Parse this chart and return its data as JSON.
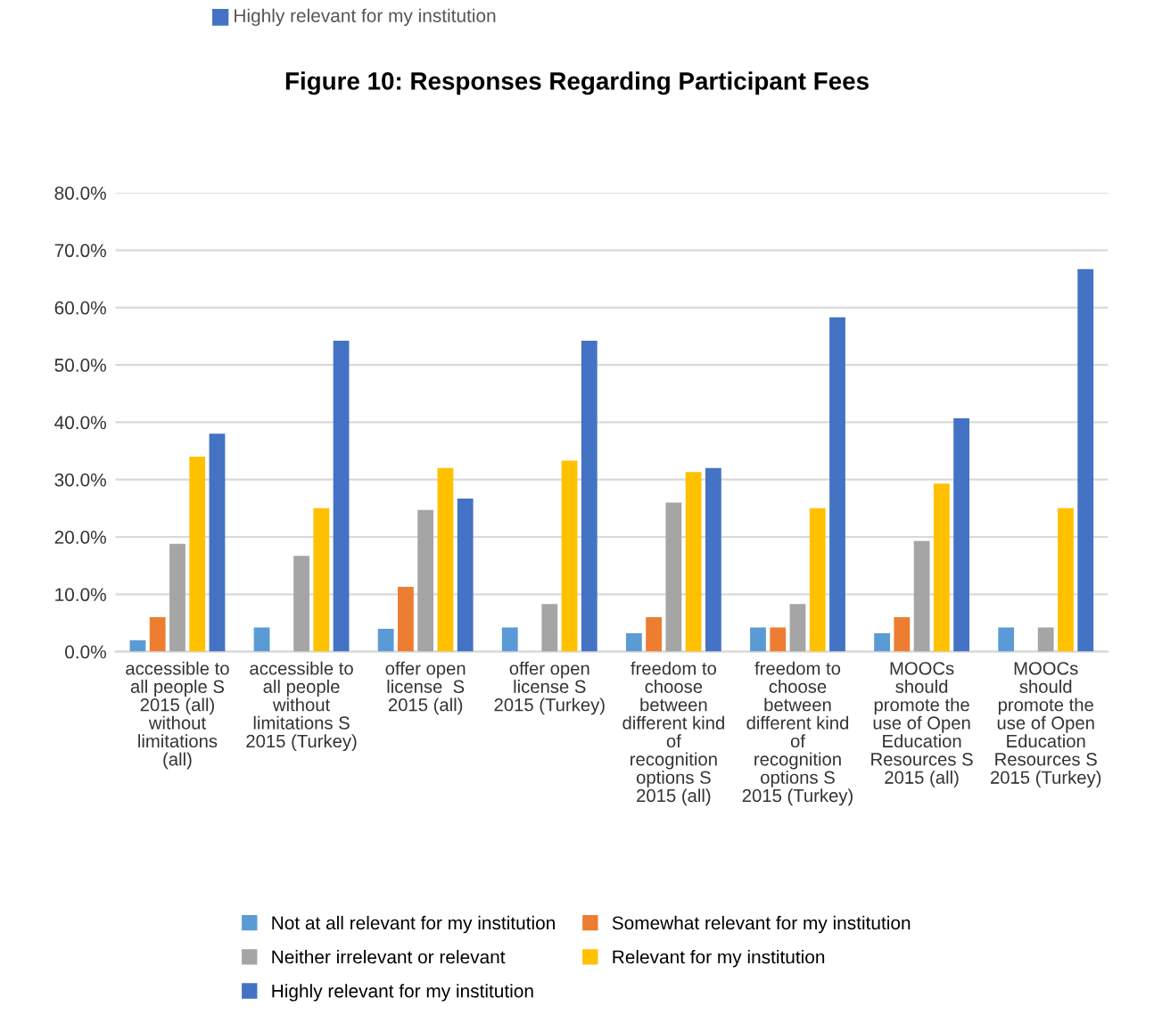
{
  "chart_data": {
    "type": "bar",
    "annotations": [
      "Highly relevant for my institution",
      "Figure 10: Responses Regarding Participant Fees"
    ],
    "categories": [
      "accessible to\nall people S\n2015 (all)\nwithout\nlimitations\n(all)",
      "accessible to\nall people\nwithout\nlimitations S\n2015 (Turkey)",
      "offer open\nlicense  S\n2015 (all)",
      "offer open\nlicense S\n2015 (Turkey)",
      "freedom to\nchoose\nbetween\ndifferent kind\nof\nrecognition\noptions S\n2015 (all)",
      "freedom to\nchoose\nbetween\ndifferent kind\nof\nrecognition\noptions S\n2015 (Turkey)",
      "MOOCs\nshould\npromote the\nuse of Open\nEducation\nResources S\n2015 (all)",
      "MOOCs\nshould\npromote the\nuse of Open\nEducation\nResources S\n2015 (Turkey)"
    ],
    "series": [
      {
        "name": "Not at all relevant for my institution",
        "color": "#5b9bd5",
        "values": [
          2.0,
          4.2,
          4.0,
          4.2,
          3.2,
          4.2,
          3.2,
          4.2
        ]
      },
      {
        "name": "Somewhat relevant for my institution",
        "color": "#ed7d31",
        "values": [
          6.0,
          0,
          11.3,
          0,
          6.0,
          4.2,
          6.0,
          0
        ]
      },
      {
        "name": "Neither irrelevant or relevant",
        "color": "#a5a5a5",
        "values": [
          18.8,
          16.7,
          24.7,
          8.3,
          26.0,
          8.3,
          19.3,
          4.2
        ]
      },
      {
        "name": "Relevant for my institution",
        "color": "#ffc000",
        "values": [
          34.0,
          25.0,
          32.0,
          33.3,
          31.3,
          25.0,
          29.3,
          25.0
        ]
      },
      {
        "name": "Highly relevant for my institution",
        "color": "#4472c4",
        "values": [
          38.0,
          54.2,
          26.7,
          54.2,
          32.0,
          58.3,
          40.7,
          66.7
        ]
      }
    ],
    "ylim": [
      0,
      80
    ],
    "yticks": [
      {
        "value": 0,
        "label": "0.0%"
      },
      {
        "value": 10,
        "label": "10.0%"
      },
      {
        "value": 20,
        "label": "20.0%"
      },
      {
        "value": 30,
        "label": "30.0%"
      },
      {
        "value": 40,
        "label": "40.0%"
      },
      {
        "value": 50,
        "label": "50.0%"
      },
      {
        "value": 60,
        "label": "60.0%"
      },
      {
        "value": 70,
        "label": "70.0%"
      },
      {
        "value": 80,
        "label": "80.0%"
      }
    ],
    "grid": "y",
    "legend": "bottom"
  }
}
